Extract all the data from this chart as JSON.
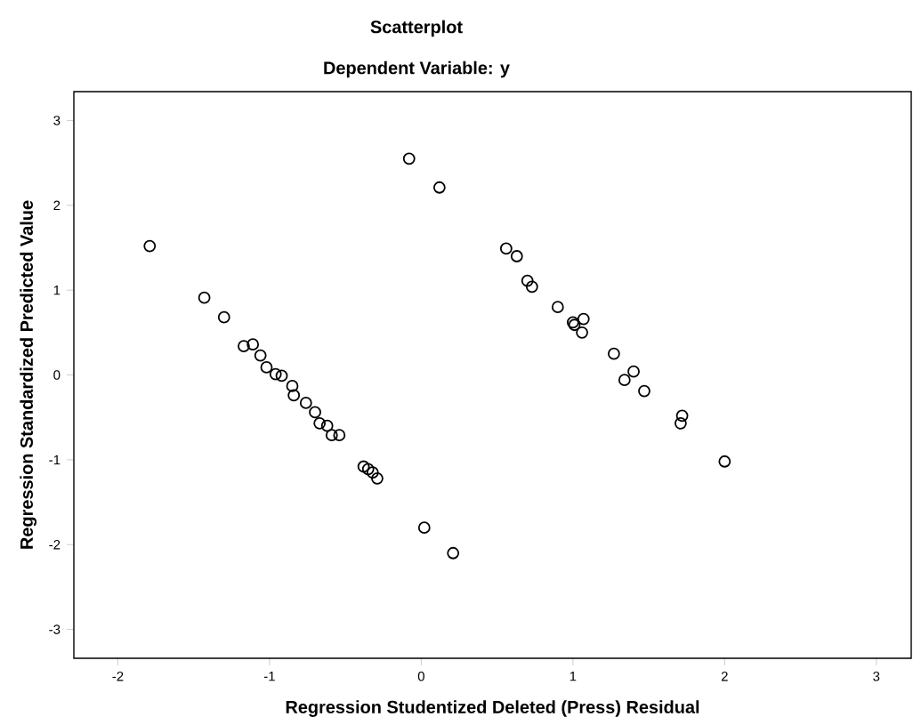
{
  "chart_data": {
    "type": "scatter",
    "title": "Scatterplot",
    "subtitle": "Dependent Variable: y",
    "xlabel": "Regression Studentized Deleted (Press) Residual",
    "ylabel": "Regression Standardized Predicted Value",
    "x": [
      -1.79,
      -1.43,
      -1.3,
      -1.17,
      -1.11,
      -1.06,
      -1.02,
      -0.96,
      -0.92,
      -0.85,
      -0.84,
      -0.76,
      -0.7,
      -0.67,
      -0.62,
      -0.59,
      -0.54,
      -0.38,
      -0.35,
      -0.32,
      -0.29,
      -0.08,
      0.12,
      0.02,
      0.21,
      0.56,
      0.63,
      0.7,
      0.73,
      0.9,
      1.0,
      1.01,
      1.07,
      1.06,
      1.27,
      1.4,
      1.34,
      1.47,
      1.72,
      1.71,
      2.0
    ],
    "values": [
      1.52,
      0.91,
      0.68,
      0.34,
      0.36,
      0.23,
      0.09,
      0.01,
      -0.01,
      -0.13,
      -0.24,
      -0.33,
      -0.44,
      -0.57,
      -0.6,
      -0.71,
      -0.71,
      -1.08,
      -1.11,
      -1.15,
      -1.22,
      2.55,
      2.21,
      -1.8,
      -2.1,
      1.49,
      1.4,
      1.11,
      1.04,
      0.8,
      0.62,
      0.59,
      0.66,
      0.5,
      0.25,
      0.04,
      -0.06,
      -0.19,
      -0.48,
      -0.57,
      -1.02
    ],
    "color": "#000000",
    "marker": "circle",
    "xlim": [
      -2.29,
      3.23
    ],
    "ylim": [
      -3.34,
      3.34
    ],
    "xticks": [
      -2,
      -1,
      0,
      1,
      2,
      3
    ],
    "yticks": [
      -3,
      -2,
      -1,
      0,
      1,
      2,
      3
    ]
  }
}
